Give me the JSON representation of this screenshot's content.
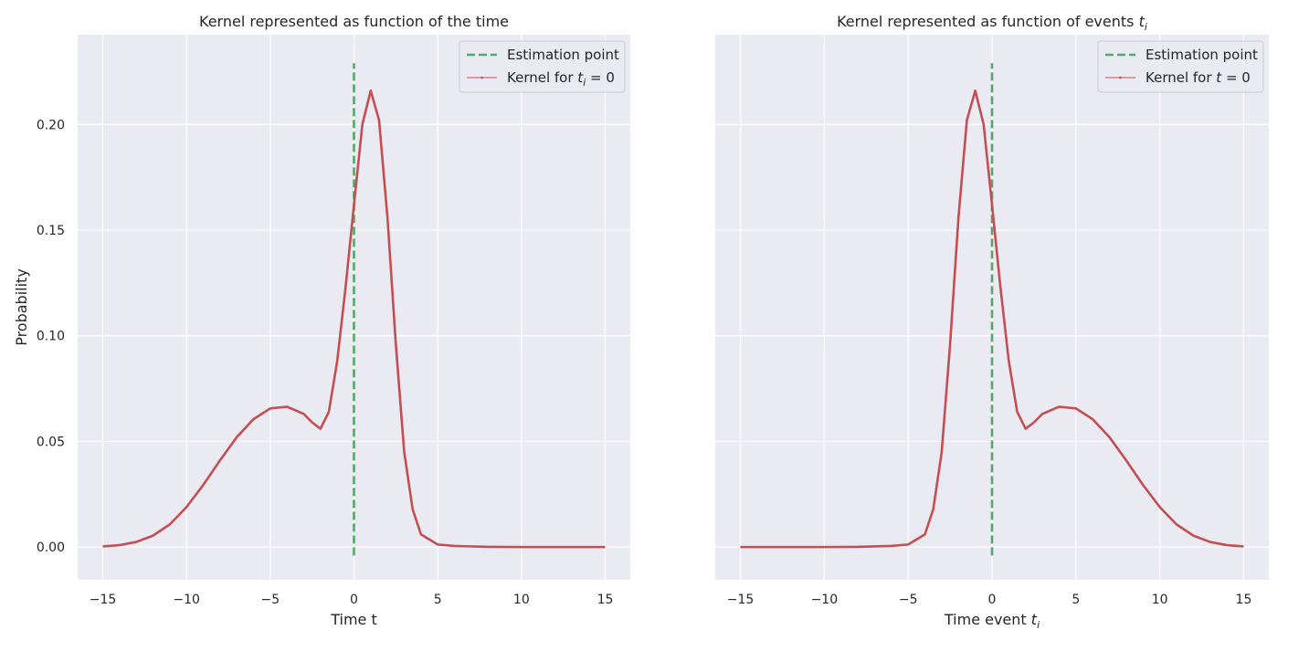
{
  "colors": {
    "axes_background": "#eaeaf2",
    "grid": "#ffffff",
    "kernel_line": "#c44e52",
    "estimation_line": "#55a868",
    "text": "#262626"
  },
  "chart_data": [
    {
      "type": "line",
      "title_main": "Kernel represented as function of the time",
      "title_math": "",
      "title_math_sub": "",
      "xlabel_main": "Time t",
      "xlabel_math": "",
      "xlabel_math_sub": "",
      "ylabel": "Probability",
      "xlim": [
        -16.5,
        16.5
      ],
      "ylim": [
        -0.0155,
        0.2425
      ],
      "xticks": [
        -15,
        -10,
        -5,
        0,
        5,
        10,
        15
      ],
      "xtick_labels": [
        "−15",
        "−10",
        "−5",
        "0",
        "5",
        "10",
        "15"
      ],
      "yticks": [
        0.0,
        0.05,
        0.1,
        0.15,
        0.2
      ],
      "ytick_labels": [
        "0.00",
        "0.05",
        "0.10",
        "0.15",
        "0.20"
      ],
      "show_yticklabels": true,
      "grid": true,
      "legend_position": "top-right",
      "legend": {
        "estimation_label": "Estimation point",
        "kernel_label_prefix": "Kernel for ",
        "kernel_label_var": "t",
        "kernel_label_sub": "i",
        "kernel_label_suffix": " = 0"
      },
      "series": [
        {
          "name": "Estimation point",
          "style": "dashed",
          "x": [
            0,
            0
          ],
          "y": [
            -0.004,
            0.229
          ]
        },
        {
          "name": "Kernel for t_i = 0",
          "style": "solid",
          "x": [
            -15,
            -14,
            -13,
            -12,
            -11,
            -10,
            -9,
            -8,
            -7,
            -6,
            -5,
            -4,
            -3,
            -2.5,
            -2,
            -1.5,
            -1,
            -0.5,
            0,
            0.5,
            1,
            1.5,
            2,
            2.5,
            3,
            3.5,
            4,
            5,
            6,
            8,
            10,
            12,
            15
          ],
          "y": [
            0.0003,
            0.0009,
            0.0024,
            0.0054,
            0.0107,
            0.0189,
            0.0294,
            0.041,
            0.052,
            0.0605,
            0.0656,
            0.0664,
            0.063,
            0.059,
            0.056,
            0.064,
            0.088,
            0.123,
            0.162,
            0.2,
            0.216,
            0.202,
            0.156,
            0.096,
            0.045,
            0.018,
            0.006,
            0.0012,
            0.0005,
            0.0001,
            0.0,
            0.0,
            0.0
          ]
        }
      ]
    },
    {
      "type": "line",
      "title_main": "Kernel represented as function of events ",
      "title_math": "t",
      "title_math_sub": "i",
      "xlabel_main": "Time event ",
      "xlabel_math": "t",
      "xlabel_math_sub": "i",
      "ylabel": "",
      "xlim": [
        -16.5,
        16.5
      ],
      "ylim": [
        -0.0155,
        0.2425
      ],
      "xticks": [
        -15,
        -10,
        -5,
        0,
        5,
        10,
        15
      ],
      "xtick_labels": [
        "−15",
        "−10",
        "−5",
        "0",
        "5",
        "10",
        "15"
      ],
      "yticks": [
        0.0,
        0.05,
        0.1,
        0.15,
        0.2
      ],
      "ytick_labels": [],
      "show_yticklabels": false,
      "grid": true,
      "legend_position": "top-right",
      "legend": {
        "estimation_label": "Estimation point",
        "kernel_label_prefix": "Kernel for ",
        "kernel_label_var": "t",
        "kernel_label_sub": "",
        "kernel_label_suffix": " = 0"
      },
      "series": [
        {
          "name": "Estimation point",
          "style": "dashed",
          "x": [
            0,
            0
          ],
          "y": [
            -0.004,
            0.229
          ]
        },
        {
          "name": "Kernel for t = 0",
          "style": "solid",
          "x": [
            -15,
            -12,
            -10,
            -8,
            -6,
            -5,
            -4,
            -3.5,
            -3,
            -2.5,
            -2,
            -1.5,
            -1,
            -0.5,
            0,
            0.5,
            1,
            1.5,
            2,
            2.5,
            3,
            4,
            5,
            6,
            7,
            8,
            9,
            10,
            11,
            12,
            13,
            14,
            15
          ],
          "y": [
            0.0,
            0.0,
            0.0,
            0.0001,
            0.0005,
            0.0012,
            0.006,
            0.018,
            0.045,
            0.096,
            0.156,
            0.202,
            0.216,
            0.2,
            0.162,
            0.123,
            0.088,
            0.064,
            0.056,
            0.059,
            0.063,
            0.0664,
            0.0656,
            0.0605,
            0.052,
            0.041,
            0.0294,
            0.0189,
            0.0107,
            0.0054,
            0.0024,
            0.0009,
            0.0003
          ]
        }
      ]
    }
  ]
}
